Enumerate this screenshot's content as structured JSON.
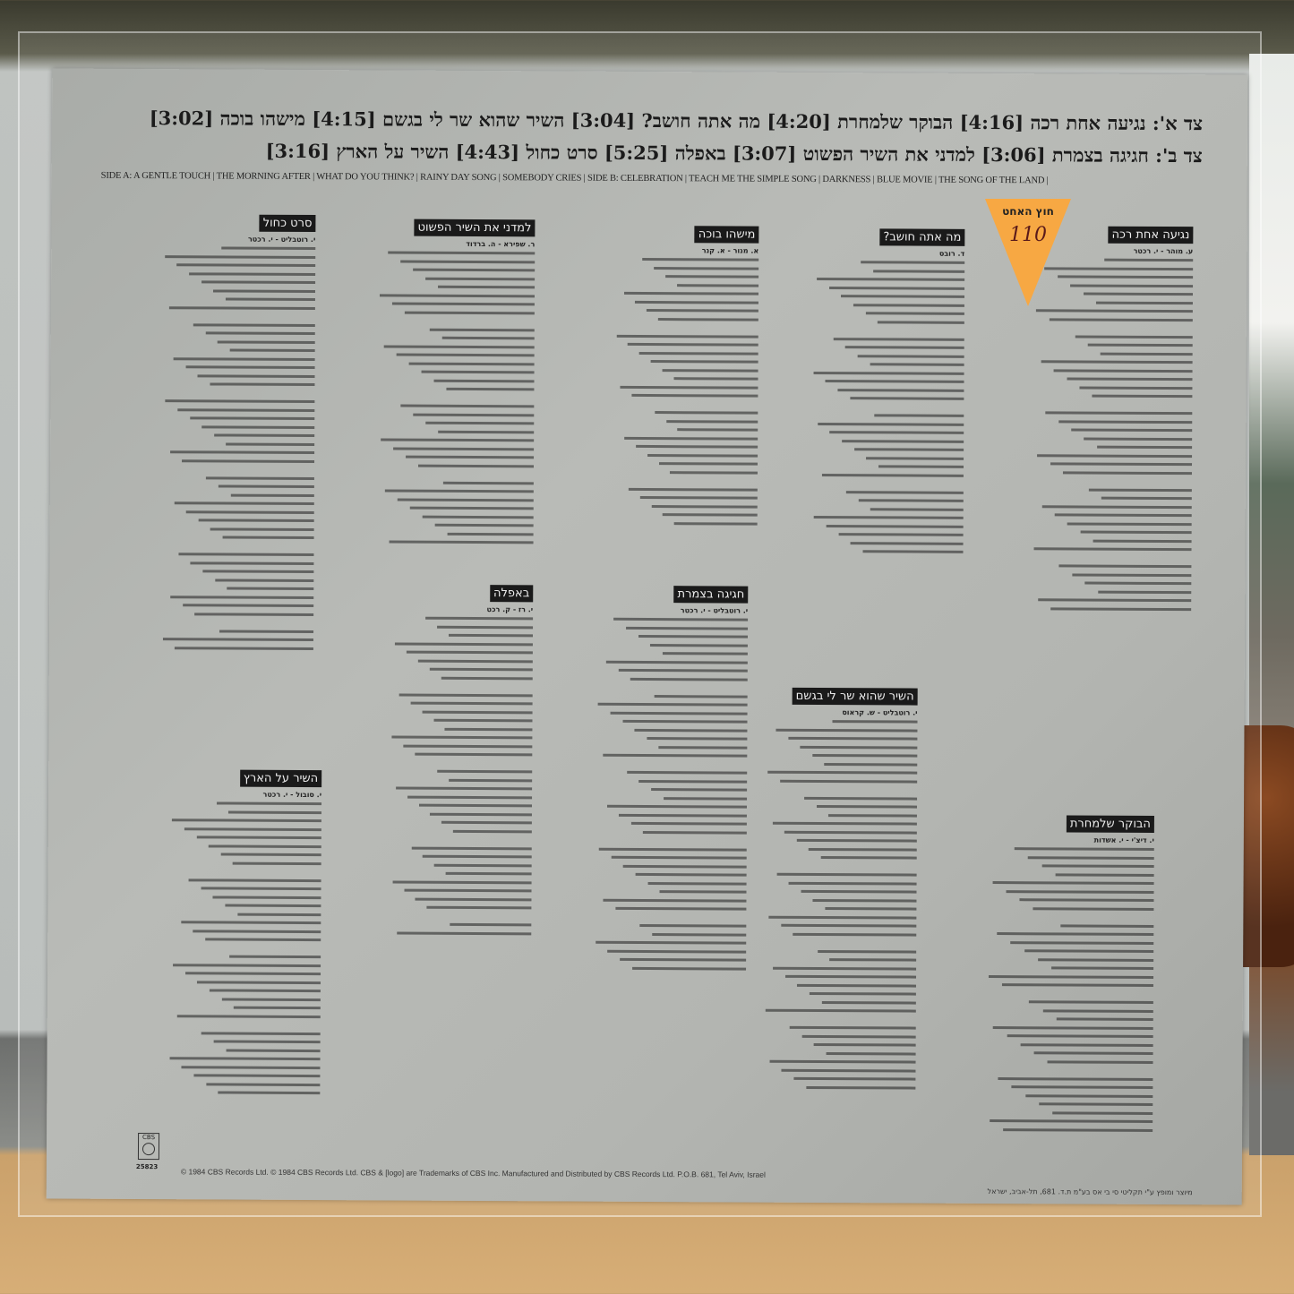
{
  "tracklist": {
    "side_a_hebrew": "צד א': נגיעה אחת רכה [4:16] הבוקר שלמחרת [4:20] מה אתה חושב? [3:04] השיר שהוא שר לי בגשם [4:15] מישהו בוכה [3:02]",
    "side_b_hebrew": "צד ב': חגיגה בצמרת [3:06] למדני את השיר הפשוט [3:07] באפלה [5:25] סרט כחול [4:43] השיר על הארץ [3:16]",
    "english": "SIDE A: A GENTLE TOUCH | THE MORNING AFTER | WHAT DO YOU THINK? | RAINY DAY SONG | SOMEBODY CRIES | SIDE B: CELEBRATION | TEACH ME THE SIMPLE SONG | DARKNESS | BLUE MOVIE | THE SONG OF THE LAND |"
  },
  "price_tag": {
    "label": "חוץ האחט",
    "price": "110",
    "color": "#f7a843"
  },
  "songs": [
    {
      "title": "נגיעה אחת רכה",
      "credit": "ע. מוהר - י. רכטר"
    },
    {
      "title": "מה אתה חושב?",
      "credit": "ד. רובס"
    },
    {
      "title": "מישהו בוכה",
      "credit": "א. מנור - א. קנר"
    },
    {
      "title": "למדני את השיר הפשוט",
      "credit": "ר. שפירא - ה. ברדוד"
    },
    {
      "title": "סרט כחול",
      "credit": "י. רוטבליט - י. רכטר"
    },
    {
      "title": "באפלה",
      "credit": "י. רז - ק. רכט"
    },
    {
      "title": "חגיגה בצמרת",
      "credit": "י. רוטבליט - י. רכטר"
    },
    {
      "title": "השיר שהוא שר לי בגשם",
      "credit": "י. רוטבליט - ש. קראוס"
    },
    {
      "title": "השיר על הארץ",
      "credit": "י. סובול - י. רכטר"
    },
    {
      "title": "הבוקר שלמחרת",
      "credit": "י. דיצ'י - י. אשדות"
    }
  ],
  "label": {
    "logo": "CBS",
    "catalog": "25823"
  },
  "footer": {
    "english": "© 1984 CBS Records Ltd. © 1984 CBS Records Ltd.  CBS & [logo] are Trademarks of CBS Inc. Manufactured and Distributed by CBS Records Ltd. P.O.B. 681, Tel Aviv, Israel",
    "hebrew": "מיוצר ומופץ ע\"י תקליטי סי בי אס בע\"מ ת.ד. 681, תל-אביב, ישראל"
  }
}
